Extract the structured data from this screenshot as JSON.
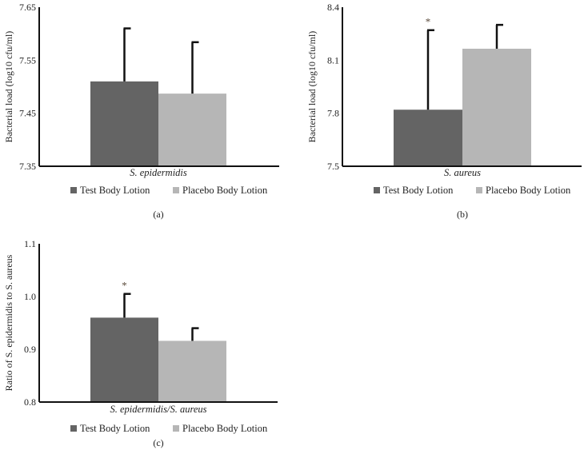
{
  "colors": {
    "test": "#646464",
    "placebo": "#b6b6b6",
    "axis": "#111111",
    "asterisk": "#5a4a3a"
  },
  "legend": [
    "Test Body Lotion",
    "Placebo Body Lotion"
  ],
  "chart_data": [
    {
      "type": "bar",
      "panel_label": "(a)",
      "categories": [
        "S. epidermidis"
      ],
      "ylabel": "Bacterial load (log10 cfu/ml)",
      "ylim": [
        7.35,
        7.65
      ],
      "yticks": [
        "7.35",
        "7.45",
        "7.55",
        "7.65"
      ],
      "series": [
        {
          "name": "Test Body Lotion",
          "values": [
            7.51
          ],
          "error_upper": [
            7.61
          ],
          "significant": false
        },
        {
          "name": "Placebo Body Lotion",
          "values": [
            7.487
          ],
          "error_upper": [
            7.584
          ],
          "significant": false
        }
      ],
      "legend_position": "bottom",
      "grid": false
    },
    {
      "type": "bar",
      "panel_label": "(b)",
      "categories": [
        "S. aureus"
      ],
      "ylabel": "Bacterial load (log10 cfu/ml)",
      "ylim": [
        7.5,
        8.4
      ],
      "yticks": [
        "7.5",
        "7.8",
        "8.1",
        "8.4"
      ],
      "series": [
        {
          "name": "Test Body Lotion",
          "values": [
            7.82
          ],
          "error_upper": [
            8.27
          ],
          "significant": true
        },
        {
          "name": "Placebo Body Lotion",
          "values": [
            8.165
          ],
          "error_upper": [
            8.3
          ],
          "significant": false
        }
      ],
      "legend_position": "bottom",
      "grid": false
    },
    {
      "type": "bar",
      "panel_label": "(c)",
      "categories": [
        "S. epidermidis/S. aureus"
      ],
      "ylabel": "Ratio of S. epidermidis to S. aureus",
      "ylim": [
        0.8,
        1.1
      ],
      "yticks": [
        "0.8",
        "0.9",
        "1.0",
        "1.1"
      ],
      "series": [
        {
          "name": "Test Body Lotion",
          "values": [
            0.96
          ],
          "error_upper": [
            1.005
          ],
          "significant": true
        },
        {
          "name": "Placebo Body Lotion",
          "values": [
            0.916
          ],
          "error_upper": [
            0.94
          ],
          "significant": false
        }
      ],
      "legend_position": "bottom",
      "grid": false
    }
  ],
  "asterisk": "*"
}
